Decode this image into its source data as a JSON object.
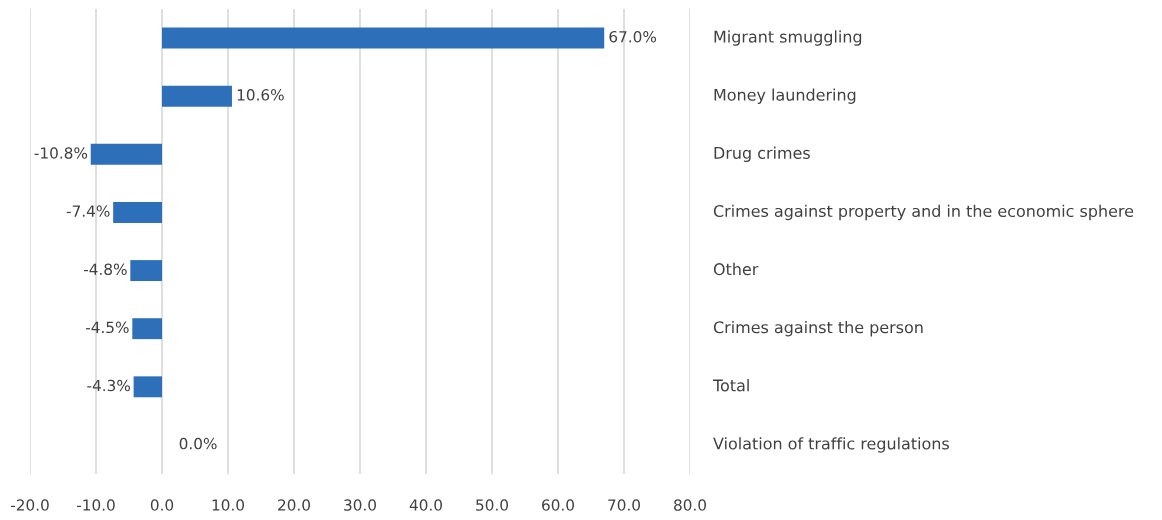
{
  "chart_data": {
    "type": "bar",
    "orientation": "horizontal",
    "categories": [
      "Migrant smuggling",
      "Money laundering",
      "Drug crimes",
      "Crimes against property and in the economic sphere",
      "Other",
      "Crimes against the person",
      "Total",
      "Violation of traffic regulations"
    ],
    "values": [
      67.0,
      10.6,
      -10.8,
      -7.4,
      -4.8,
      -4.5,
      -4.3,
      0.0
    ],
    "value_labels": [
      "67.0%",
      "10.6%",
      "-10.8%",
      "-7.4%",
      "-4.8%",
      "-4.5%",
      "-4.3%",
      "0.0%"
    ],
    "color": "#2e6fba",
    "xlim": [
      -20,
      80
    ],
    "xticks": [
      {
        "value": -20,
        "label": "-20.0"
      },
      {
        "value": -10,
        "label": "-10.0"
      },
      {
        "value": 0,
        "label": "0.0"
      },
      {
        "value": 10,
        "label": "10.0"
      },
      {
        "value": 20,
        "label": "20.0"
      },
      {
        "value": 30,
        "label": "30.0"
      },
      {
        "value": 40,
        "label": "40.0"
      },
      {
        "value": 50,
        "label": "50.0"
      },
      {
        "value": 60,
        "label": "60.0"
      },
      {
        "value": 70,
        "label": "70.0"
      },
      {
        "value": 80,
        "label": "80.0"
      }
    ],
    "grid": "x",
    "legend": false
  }
}
